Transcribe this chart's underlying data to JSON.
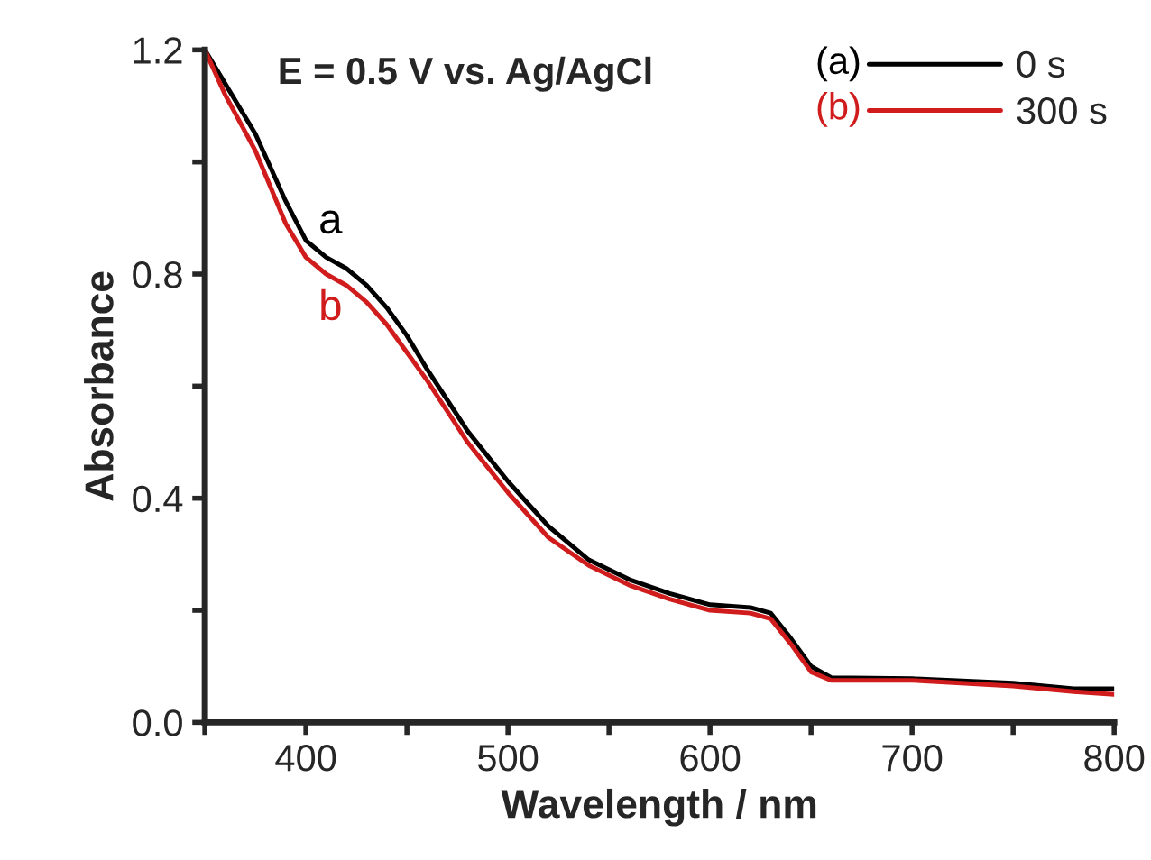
{
  "chart_data": {
    "type": "line",
    "title": "E = 0.5 V vs. Ag/AgCl",
    "xlabel": "Wavelength / nm",
    "ylabel": "Absorbance",
    "x": [
      350,
      360,
      375,
      390,
      400,
      410,
      420,
      430,
      440,
      450,
      460,
      480,
      500,
      520,
      540,
      560,
      580,
      600,
      620,
      630,
      640,
      650,
      660,
      700,
      750,
      780,
      800
    ],
    "series": [
      {
        "name": "0 s",
        "color": "#000000",
        "values": [
          1.2,
          1.14,
          1.05,
          0.93,
          0.86,
          0.83,
          0.81,
          0.78,
          0.74,
          0.69,
          0.63,
          0.52,
          0.43,
          0.35,
          0.29,
          0.255,
          0.23,
          0.21,
          0.205,
          0.195,
          0.15,
          0.1,
          0.08,
          0.078,
          0.07,
          0.06,
          0.06
        ]
      },
      {
        "name": "300 s",
        "color": "#d01c1c",
        "values": [
          1.2,
          1.12,
          1.02,
          0.89,
          0.83,
          0.8,
          0.78,
          0.75,
          0.71,
          0.66,
          0.61,
          0.5,
          0.41,
          0.33,
          0.28,
          0.245,
          0.22,
          0.2,
          0.195,
          0.185,
          0.14,
          0.09,
          0.075,
          0.075,
          0.065,
          0.055,
          0.05
        ]
      }
    ],
    "annotations": [
      {
        "text": "a",
        "x": 410,
        "y": 0.83
      },
      {
        "text": "b",
        "x": 410,
        "y": 0.8
      },
      "(a)",
      "(b)"
    ],
    "xlim": [
      350,
      800
    ],
    "ylim": [
      0,
      1.2
    ],
    "xticks": [
      {
        "value": 350,
        "label": null
      },
      400,
      {
        "value": 450,
        "label": null
      },
      500,
      {
        "value": 550,
        "label": null
      },
      600,
      {
        "value": 650,
        "label": null
      },
      700,
      {
        "value": 750,
        "label": null
      },
      800
    ],
    "yticks": [
      {
        "value": 0,
        "label": "0.0"
      },
      {
        "value": 0.2,
        "label": null
      },
      0.4,
      {
        "value": 0.6,
        "label": null
      },
      0.8,
      {
        "value": 1.0,
        "label": null
      },
      1.2
    ],
    "legend": "top right",
    "grid": false,
    "line_style": "solid",
    "marker": "none"
  }
}
